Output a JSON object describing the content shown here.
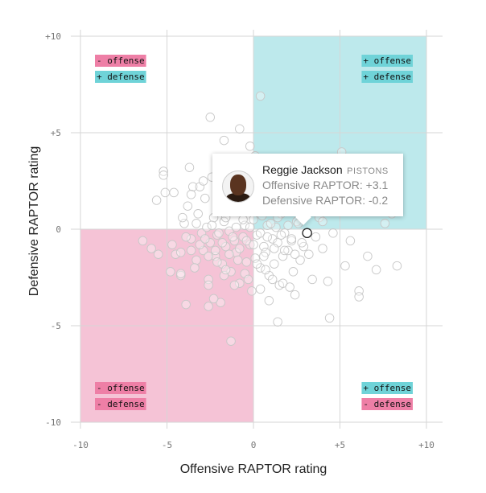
{
  "chart_data": {
    "type": "scatter",
    "xlabel": "Offensive RAPTOR rating",
    "ylabel": "Defensive RAPTOR rating",
    "xlim": [
      -10,
      10
    ],
    "ylim": [
      -10,
      10
    ],
    "x_ticks": [
      -10,
      -5,
      0,
      5,
      10
    ],
    "y_ticks": [
      -10,
      -5,
      0,
      5,
      10
    ],
    "x_tick_labels": [
      "-10",
      "-5",
      "0",
      "+5",
      "+10"
    ],
    "y_tick_labels": [
      "-10",
      "-5",
      "0",
      "+5",
      "+10"
    ],
    "grid": true,
    "quadrants": [
      {
        "id": "tl",
        "offense": "- offense",
        "defense": "+ defense",
        "color": "#ffffff"
      },
      {
        "id": "tr",
        "offense": "+ offense",
        "defense": "+ defense",
        "color": "#bde9ec"
      },
      {
        "id": "bl",
        "offense": "- offense",
        "defense": "- defense",
        "color": "#f5c3d6"
      },
      {
        "id": "br",
        "offense": "+ offense",
        "defense": "- defense",
        "color": "#ffffff"
      }
    ],
    "label_colors": {
      "plus": "#6fd3d8",
      "minus": "#ee7fa6"
    },
    "highlight": {
      "x": 3.1,
      "y": -0.2
    },
    "points": [
      [
        -5.6,
        1.5
      ],
      [
        -5.1,
        1.9
      ],
      [
        -4.7,
        -0.8
      ],
      [
        -4.5,
        -1.3
      ],
      [
        -4.2,
        -2.4
      ],
      [
        -4.0,
        0.3
      ],
      [
        -3.8,
        1.2
      ],
      [
        -3.6,
        -0.5
      ],
      [
        -3.5,
        2.2
      ],
      [
        -3.3,
        -1.6
      ],
      [
        -3.2,
        0.8
      ],
      [
        -3.0,
        -0.2
      ],
      [
        -2.9,
        -1.1
      ],
      [
        -2.8,
        1.6
      ],
      [
        -2.7,
        0.1
      ],
      [
        -2.6,
        -2.6
      ],
      [
        -2.5,
        -0.7
      ],
      [
        -2.4,
        2.7
      ],
      [
        -2.3,
        0.6
      ],
      [
        -2.2,
        -1.4
      ],
      [
        -2.1,
        -0.3
      ],
      [
        -2.0,
        1.1
      ],
      [
        -1.9,
        -3.8
      ],
      [
        -1.8,
        -1.8
      ],
      [
        -1.7,
        0.4
      ],
      [
        -1.6,
        -0.9
      ],
      [
        -1.5,
        2.0
      ],
      [
        -1.4,
        -0.1
      ],
      [
        -1.3,
        -2.2
      ],
      [
        -1.2,
        1.4
      ],
      [
        -1.1,
        -0.6
      ],
      [
        -1.0,
        -1.2
      ],
      [
        -0.9,
        0.9
      ],
      [
        -0.8,
        -2.8
      ],
      [
        -0.7,
        3.1
      ],
      [
        -0.6,
        -0.4
      ],
      [
        -0.5,
        0.2
      ],
      [
        -0.4,
        -1.7
      ],
      [
        -0.3,
        1.7
      ],
      [
        -0.2,
        -0.8
      ],
      [
        -0.1,
        -3.2
      ],
      [
        0.0,
        0.5
      ],
      [
        0.1,
        -1.5
      ],
      [
        0.2,
        -0.3
      ],
      [
        0.3,
        2.4
      ],
      [
        0.4,
        -2.0
      ],
      [
        0.5,
        0.7
      ],
      [
        0.6,
        -0.9
      ],
      [
        0.7,
        -1.2
      ],
      [
        0.8,
        0.2
      ],
      [
        0.9,
        -2.4
      ],
      [
        1.0,
        1.3
      ],
      [
        1.1,
        -0.5
      ],
      [
        1.2,
        -1.8
      ],
      [
        1.3,
        0.1
      ],
      [
        1.4,
        -0.7
      ],
      [
        1.5,
        -2.9
      ],
      [
        1.6,
        0.8
      ],
      [
        1.7,
        -1.4
      ],
      [
        1.8,
        -0.2
      ],
      [
        1.9,
        2.1
      ],
      [
        2.0,
        -1.1
      ],
      [
        2.2,
        -0.6
      ],
      [
        2.3,
        -2.2
      ],
      [
        2.5,
        0.4
      ],
      [
        2.7,
        -1.6
      ],
      [
        2.9,
        -0.9
      ],
      [
        3.0,
        1.0
      ],
      [
        3.2,
        -1.3
      ],
      [
        3.4,
        -2.6
      ],
      [
        3.6,
        -0.4
      ],
      [
        3.8,
        0.6
      ],
      [
        4.0,
        -1.0
      ],
      [
        4.3,
        -2.7
      ],
      [
        4.6,
        -0.2
      ],
      [
        4.8,
        1.2
      ],
      [
        5.3,
        -1.9
      ],
      [
        5.6,
        -0.6
      ],
      [
        6.1,
        -3.2
      ],
      [
        6.6,
        -1.4
      ],
      [
        7.1,
        -2.1
      ],
      [
        7.6,
        0.3
      ],
      [
        8.3,
        -1.9
      ],
      [
        8.0,
        0.8
      ],
      [
        6.1,
        -3.5
      ],
      [
        5.0,
        1.4
      ],
      [
        4.4,
        -4.6
      ],
      [
        4.0,
        0.4
      ],
      [
        -4.2,
        -1.2
      ],
      [
        -3.9,
        -0.4
      ],
      [
        -3.6,
        -1.1
      ],
      [
        -3.3,
        0.3
      ],
      [
        -3.1,
        -0.8
      ],
      [
        -2.8,
        -0.5
      ],
      [
        -2.6,
        -1.4
      ],
      [
        -2.4,
        0.2
      ],
      [
        -2.2,
        -1.1
      ],
      [
        -2.0,
        -0.2
      ],
      [
        -1.8,
        -0.7
      ],
      [
        -1.6,
        0.6
      ],
      [
        -1.4,
        -1.3
      ],
      [
        -1.2,
        -0.4
      ],
      [
        -1.0,
        0.1
      ],
      [
        -0.8,
        -1.0
      ],
      [
        -0.6,
        0.5
      ],
      [
        -0.4,
        -0.6
      ],
      [
        -0.2,
        0.1
      ],
      [
        0.0,
        -0.8
      ],
      [
        0.2,
        0.9
      ],
      [
        0.4,
        -0.2
      ],
      [
        0.6,
        -1.4
      ],
      [
        0.8,
        -0.4
      ],
      [
        1.0,
        0.3
      ],
      [
        1.2,
        -1.0
      ],
      [
        1.4,
        0.6
      ],
      [
        1.6,
        -0.3
      ],
      [
        1.8,
        -1.1
      ],
      [
        2.0,
        0.2
      ],
      [
        2.2,
        -0.5
      ],
      [
        2.4,
        -1.3
      ],
      [
        2.6,
        0.3
      ],
      [
        2.8,
        -0.7
      ],
      [
        -3.4,
        -2.0
      ],
      [
        -2.6,
        -2.9
      ],
      [
        -2.3,
        -3.6
      ],
      [
        -1.7,
        -2.4
      ],
      [
        -1.1,
        -2.9
      ],
      [
        -0.5,
        -2.3
      ],
      [
        0.4,
        -3.1
      ],
      [
        0.9,
        -3.7
      ],
      [
        1.4,
        -4.8
      ],
      [
        -1.3,
        -5.8
      ],
      [
        -2.6,
        -4.0
      ],
      [
        -4.2,
        -2.3
      ],
      [
        -5.2,
        3.0
      ],
      [
        -2.5,
        5.8
      ],
      [
        -1.7,
        4.6
      ],
      [
        -0.8,
        5.2
      ],
      [
        -0.2,
        4.3
      ],
      [
        0.4,
        6.9
      ],
      [
        -1.1,
        3.6
      ],
      [
        -3.7,
        3.2
      ],
      [
        -4.6,
        1.9
      ],
      [
        -5.2,
        2.8
      ],
      [
        0.1,
        3.8
      ],
      [
        1.2,
        3.6
      ],
      [
        3.2,
        3.0
      ],
      [
        5.1,
        4.0
      ],
      [
        6.1,
        2.9
      ],
      [
        -0.4,
        2.0
      ],
      [
        -1.5,
        2.6
      ],
      [
        -2.0,
        3.4
      ],
      [
        -3.1,
        2.2
      ],
      [
        -4.1,
        0.6
      ],
      [
        -5.5,
        -1.3
      ],
      [
        -6.4,
        -0.6
      ],
      [
        -5.9,
        -1.0
      ],
      [
        -4.8,
        -2.2
      ],
      [
        -2.1,
        -1.7
      ],
      [
        -1.6,
        -2.1
      ],
      [
        -0.9,
        -1.6
      ],
      [
        -0.3,
        -2.6
      ],
      [
        0.2,
        -1.8
      ],
      [
        0.7,
        -2.1
      ],
      [
        1.1,
        -2.6
      ],
      [
        1.7,
        -2.8
      ],
      [
        2.1,
        -3.0
      ],
      [
        2.4,
        -3.4
      ],
      [
        -3.9,
        -3.9
      ],
      [
        -3.6,
        1.8
      ],
      [
        -2.9,
        2.5
      ],
      [
        -1.9,
        1.9
      ],
      [
        -0.6,
        1.4
      ],
      [
        0.5,
        1.7
      ],
      [
        1.5,
        1.2
      ],
      [
        2.4,
        1.5
      ],
      [
        3.6,
        1.9
      ],
      [
        4.5,
        2.6
      ],
      [
        2.0,
        2.7
      ],
      [
        0.9,
        2.4
      ],
      [
        -0.1,
        2.9
      ],
      [
        -1.0,
        3.1
      ]
    ]
  }
}
